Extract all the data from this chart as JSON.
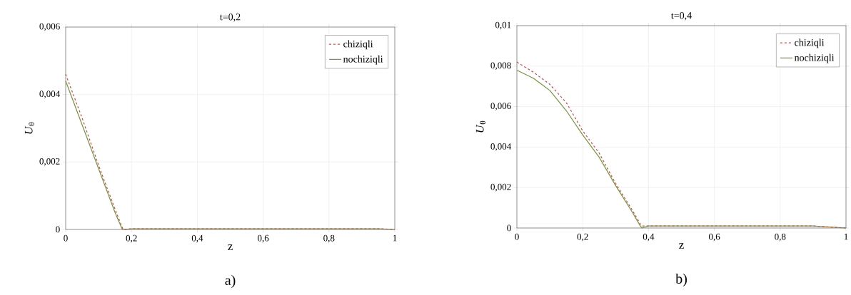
{
  "chart_data": [
    {
      "type": "line",
      "title": "t=0,2",
      "xlabel": "z",
      "ylabel": "*U*$_{θ}$",
      "annotations": [
        "a)"
      ],
      "xlim": [
        0,
        1
      ],
      "ylim": [
        0,
        0.006
      ],
      "xticks": [
        0,
        {
          "value": 0.2,
          "label": "0,2"
        },
        {
          "value": 0.4,
          "label": "0,4"
        },
        {
          "value": 0.6,
          "label": "0,6"
        },
        {
          "value": 0.8,
          "label": "0,8"
        },
        1
      ],
      "yticks": [
        0,
        {
          "value": 0.002,
          "label": "0,002"
        },
        {
          "value": 0.004,
          "label": "0,004"
        },
        {
          "value": 0.006,
          "label": "0,006"
        }
      ],
      "grid": true,
      "legend": "top right",
      "series": [
        {
          "name": "chiziqli",
          "color": "#c0504d",
          "line_style": "dashed",
          "x": [
            0,
            0.05,
            0.1,
            0.15,
            0.17,
            0.175,
            0.2,
            0.4,
            0.6,
            0.8,
            0.95,
            1
          ],
          "values": [
            0.0046,
            0.0033,
            0.0019,
            0.0006,
            0.0001,
            0,
            2e-05,
            2e-05,
            2e-05,
            2e-05,
            2e-05,
            0
          ]
        },
        {
          "name": "nochiziqli",
          "color": "#77933c",
          "line_style": "solid",
          "x": [
            0,
            0.05,
            0.1,
            0.15,
            0.172,
            0.18,
            0.2,
            0.4,
            0.6,
            0.8,
            0.95,
            1
          ],
          "values": [
            0.0044,
            0.0031,
            0.0018,
            0.0005,
            0,
            0,
            2e-05,
            2e-05,
            2e-05,
            2e-05,
            2e-05,
            0
          ]
        }
      ]
    },
    {
      "type": "line",
      "title": "t=0,4",
      "xlabel": "z",
      "ylabel": "*U*$_{θ}$",
      "annotations": [
        "b)"
      ],
      "xlim": [
        0,
        1
      ],
      "ylim": [
        0,
        0.01
      ],
      "xticks": [
        0,
        {
          "value": 0.2,
          "label": "0,2"
        },
        {
          "value": 0.4,
          "label": "0,4"
        },
        {
          "value": 0.6,
          "label": "0,6"
        },
        {
          "value": 0.8,
          "label": "0,8"
        },
        1
      ],
      "yticks": [
        0,
        {
          "value": 0.002,
          "label": "0,002"
        },
        {
          "value": 0.004,
          "label": "0,004"
        },
        {
          "value": 0.006,
          "label": "0,006"
        },
        {
          "value": 0.008,
          "label": "0,008"
        },
        {
          "value": 0.01,
          "label": "0,01"
        }
      ],
      "grid": true,
      "legend": "top right",
      "series": [
        {
          "name": "chiziqli",
          "color": "#c0504d",
          "line_style": "dashed",
          "x": [
            0,
            0.05,
            0.1,
            0.15,
            0.2,
            0.25,
            0.3,
            0.35,
            0.375,
            0.38,
            0.4,
            0.6,
            0.8,
            0.9,
            1
          ],
          "values": [
            0.0082,
            0.0077,
            0.0071,
            0.0062,
            0.0048,
            0.0037,
            0.0022,
            0.0009,
            0.0002,
            0.0001,
            0.0001,
            0.0001,
            0.0001,
            0.0001,
            0
          ]
        },
        {
          "name": "nochiziqli",
          "color": "#77933c",
          "line_style": "solid",
          "x": [
            0,
            0.05,
            0.1,
            0.15,
            0.2,
            0.25,
            0.3,
            0.35,
            0.375,
            0.38,
            0.4,
            0.6,
            0.8,
            0.9,
            1
          ],
          "values": [
            0.0078,
            0.0074,
            0.0068,
            0.0058,
            0.0046,
            0.0035,
            0.0021,
            0.0008,
            0.0001,
            0,
            0.0001,
            0.0001,
            0.0001,
            0.0001,
            0
          ]
        }
      ]
    }
  ]
}
